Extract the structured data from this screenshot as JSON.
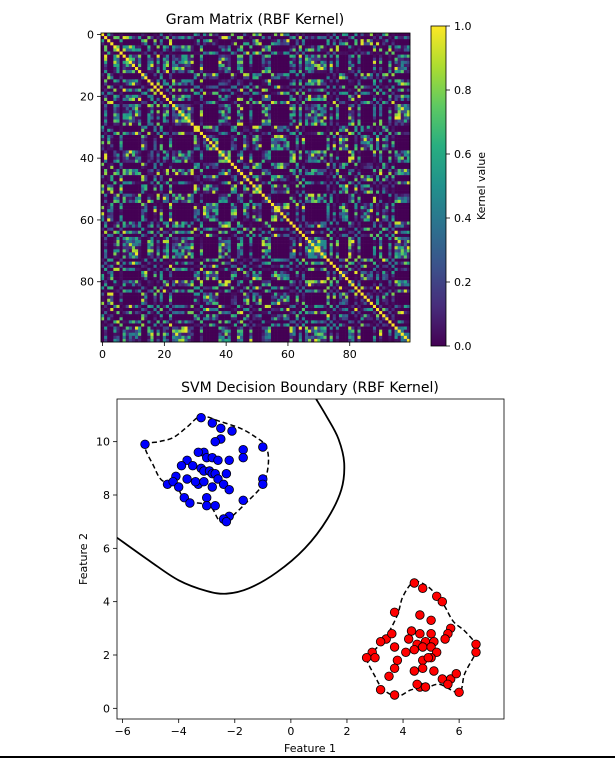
{
  "chart_data": [
    {
      "type": "heatmap",
      "title": "Gram Matrix (RBF Kernel)",
      "matrix_size": 100,
      "block_structure": {
        "cluster_a_indices_note": "",
        "within_cluster_kernel_range": [
          0.2,
          1.0
        ],
        "between_cluster_kernel_value": 0.0
      },
      "diagonal_value": 1.0,
      "x_ticks": [
        "0",
        "20",
        "40",
        "60",
        "80"
      ],
      "y_ticks": [
        "0",
        "20",
        "40",
        "60",
        "80"
      ],
      "colormap": "viridis",
      "colorbar": {
        "label": "Kernel value",
        "min": 0.0,
        "max": 1.0,
        "ticks": [
          "0.0",
          "0.2",
          "0.4",
          "0.6",
          "0.8",
          "1.0"
        ]
      }
    },
    {
      "type": "scatter",
      "title": "SVM Decision Boundary (RBF Kernel)",
      "xlabel": "Feature 1",
      "ylabel": "Feature 2",
      "xlim": [
        -6.2,
        7.6
      ],
      "ylim": [
        -0.4,
        11.6
      ],
      "x_ticks": [
        "−6",
        "−4",
        "−2",
        "0",
        "2",
        "4",
        "6"
      ],
      "y_ticks": [
        "0",
        "2",
        "4",
        "6",
        "8",
        "10"
      ],
      "series": [
        {
          "color": "#0000ff",
          "points": [
            [
              -5.2,
              9.9
            ],
            [
              -3.2,
              10.9
            ],
            [
              -2.8,
              10.7
            ],
            [
              -2.5,
              10.5
            ],
            [
              -2.1,
              10.4
            ],
            [
              -2.5,
              10.1
            ],
            [
              -2.7,
              10.0
            ],
            [
              -3.1,
              9.6
            ],
            [
              -3.3,
              9.6
            ],
            [
              -3.0,
              9.4
            ],
            [
              -2.8,
              9.4
            ],
            [
              -2.6,
              9.3
            ],
            [
              -2.2,
              9.3
            ],
            [
              -1.7,
              9.7
            ],
            [
              -1.0,
              9.8
            ],
            [
              -1.7,
              9.4
            ],
            [
              -3.7,
              9.3
            ],
            [
              -3.9,
              9.1
            ],
            [
              -3.5,
              9.1
            ],
            [
              -3.2,
              9.0
            ],
            [
              -3.1,
              8.9
            ],
            [
              -2.9,
              8.9
            ],
            [
              -2.8,
              8.8
            ],
            [
              -2.7,
              8.8
            ],
            [
              -2.3,
              8.8
            ],
            [
              -2.6,
              8.6
            ],
            [
              -3.3,
              8.4
            ],
            [
              -3.7,
              8.6
            ],
            [
              -4.1,
              8.7
            ],
            [
              -4.4,
              8.4
            ],
            [
              -4.2,
              8.5
            ],
            [
              -4.0,
              8.3
            ],
            [
              -3.4,
              8.5
            ],
            [
              -3.1,
              8.5
            ],
            [
              -2.8,
              8.3
            ],
            [
              -2.4,
              8.4
            ],
            [
              -2.2,
              8.2
            ],
            [
              -1.0,
              8.6
            ],
            [
              -1.0,
              8.4
            ],
            [
              -3.8,
              7.9
            ],
            [
              -3.6,
              7.7
            ],
            [
              -3.0,
              7.9
            ],
            [
              -3.0,
              7.6
            ],
            [
              -2.7,
              7.6
            ],
            [
              -1.7,
              7.8
            ],
            [
              -2.2,
              7.2
            ],
            [
              -2.4,
              7.1
            ],
            [
              -2.3,
              7.0
            ]
          ]
        },
        {
          "color": "#ff0000",
          "points": [
            [
              4.4,
              4.7
            ],
            [
              4.7,
              4.5
            ],
            [
              5.2,
              4.2
            ],
            [
              5.4,
              4.0
            ],
            [
              3.7,
              3.6
            ],
            [
              4.6,
              3.5
            ],
            [
              5.0,
              3.3
            ],
            [
              5.7,
              3.0
            ],
            [
              5.6,
              2.8
            ],
            [
              4.3,
              2.9
            ],
            [
              4.6,
              2.8
            ],
            [
              5.0,
              2.8
            ],
            [
              3.4,
              2.6
            ],
            [
              3.6,
              2.8
            ],
            [
              3.2,
              2.5
            ],
            [
              3.7,
              2.3
            ],
            [
              4.2,
              2.6
            ],
            [
              4.5,
              2.4
            ],
            [
              4.8,
              2.5
            ],
            [
              5.1,
              2.5
            ],
            [
              5.5,
              2.6
            ],
            [
              6.6,
              2.4
            ],
            [
              6.6,
              2.1
            ],
            [
              2.9,
              2.1
            ],
            [
              3.0,
              1.9
            ],
            [
              2.7,
              1.9
            ],
            [
              4.1,
              2.1
            ],
            [
              4.4,
              2.2
            ],
            [
              4.7,
              2.3
            ],
            [
              5.0,
              2.3
            ],
            [
              5.2,
              2.1
            ],
            [
              5.0,
              1.9
            ],
            [
              4.7,
              1.8
            ],
            [
              4.9,
              1.9
            ],
            [
              3.8,
              1.8
            ],
            [
              3.7,
              1.5
            ],
            [
              4.4,
              1.4
            ],
            [
              4.7,
              1.5
            ],
            [
              5.1,
              1.4
            ],
            [
              5.4,
              1.1
            ],
            [
              5.7,
              1.1
            ],
            [
              5.6,
              0.9
            ],
            [
              5.9,
              1.3
            ],
            [
              3.5,
              1.2
            ],
            [
              3.2,
              0.7
            ],
            [
              3.7,
              0.5
            ],
            [
              4.6,
              0.8
            ],
            [
              4.8,
              0.8
            ],
            [
              4.5,
              0.9
            ],
            [
              6.0,
              0.6
            ]
          ]
        }
      ],
      "decision_boundary": [
        [
          -6.2,
          6.4
        ],
        [
          -5.0,
          5.5
        ],
        [
          -4.0,
          4.8
        ],
        [
          -3.0,
          4.4
        ],
        [
          -2.3,
          4.3
        ],
        [
          -1.5,
          4.5
        ],
        [
          -0.5,
          5.1
        ],
        [
          0.5,
          6.0
        ],
        [
          1.3,
          7.1
        ],
        [
          1.8,
          8.2
        ],
        [
          1.9,
          9.2
        ],
        [
          1.7,
          10.1
        ],
        [
          1.3,
          10.9
        ],
        [
          0.9,
          11.6
        ]
      ],
      "margin_contours": [
        [
          [
            -5.2,
            9.85
          ],
          [
            -4.7,
            10.0
          ],
          [
            -4.2,
            10.15
          ],
          [
            -3.7,
            10.55
          ],
          [
            -3.2,
            10.95
          ],
          [
            -2.5,
            10.75
          ],
          [
            -1.8,
            10.5
          ],
          [
            -1.3,
            10.2
          ],
          [
            -0.9,
            9.85
          ],
          [
            -0.8,
            9.2
          ],
          [
            -1.0,
            8.4
          ],
          [
            -1.6,
            7.7
          ],
          [
            -2.2,
            7.1
          ],
          [
            -2.4,
            6.95
          ],
          [
            -2.6,
            7.1
          ],
          [
            -2.9,
            7.6
          ],
          [
            -3.6,
            7.75
          ],
          [
            -3.9,
            8.0
          ],
          [
            -4.1,
            8.4
          ],
          [
            -4.6,
            8.55
          ],
          [
            -4.9,
            9.1
          ],
          [
            -5.2,
            9.85
          ]
        ],
        [
          [
            4.4,
            4.75
          ],
          [
            4.9,
            4.55
          ],
          [
            5.3,
            4.1
          ],
          [
            5.5,
            3.8
          ],
          [
            5.8,
            3.25
          ],
          [
            6.2,
            2.9
          ],
          [
            6.6,
            2.4
          ],
          [
            6.6,
            2.1
          ],
          [
            6.2,
            1.3
          ],
          [
            6.0,
            0.6
          ],
          [
            5.3,
            0.9
          ],
          [
            4.8,
            0.75
          ],
          [
            4.3,
            0.7
          ],
          [
            3.8,
            0.45
          ],
          [
            3.3,
            0.7
          ],
          [
            3.0,
            1.2
          ],
          [
            2.7,
            1.9
          ],
          [
            3.0,
            2.2
          ],
          [
            3.4,
            2.7
          ],
          [
            3.8,
            3.5
          ],
          [
            4.0,
            4.2
          ],
          [
            4.4,
            4.75
          ]
        ]
      ]
    }
  ]
}
